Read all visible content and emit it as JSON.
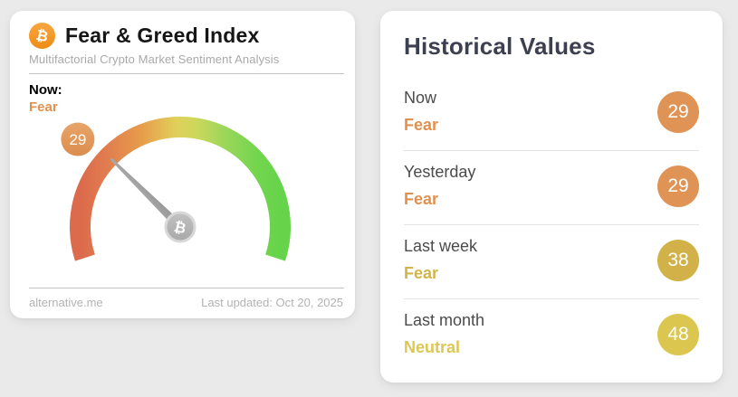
{
  "icons": {
    "bitcoin": "₿"
  },
  "colors": {
    "accent_orange": "#e0914f",
    "gold": "#d2b54a",
    "yellow": "#dcc754",
    "badge_orange": "#df9355",
    "badge_gold": "#d1b148",
    "badge_yellow": "#dbc64f",
    "bitcoin_orange": "#f7931a",
    "gauge_red": "#dc6a4c",
    "gauge_orange": "#e79b4b",
    "gauge_yellow": "#e0d05a",
    "gauge_green": "#66d44a",
    "needle_gray": "#a0a0a0"
  },
  "left_card": {
    "title": "Fear & Greed Index",
    "subtitle": "Multifactorial Crypto Market Sentiment Analysis",
    "now_label": "Now:",
    "now_sentiment": "Fear",
    "gauge": {
      "value": 29,
      "min": 0,
      "max": 100,
      "sentiment": "Fear"
    },
    "footer_left": "alternative.me",
    "footer_right": "Last updated: Oct 20, 2025"
  },
  "right_card": {
    "title": "Historical Values",
    "rows": [
      {
        "label": "Now",
        "sentiment": "Fear",
        "value": "29"
      },
      {
        "label": "Yesterday",
        "sentiment": "Fear",
        "value": "29"
      },
      {
        "label": "Last week",
        "sentiment": "Fear",
        "value": "38"
      },
      {
        "label": "Last month",
        "sentiment": "Neutral",
        "value": "48"
      }
    ]
  }
}
